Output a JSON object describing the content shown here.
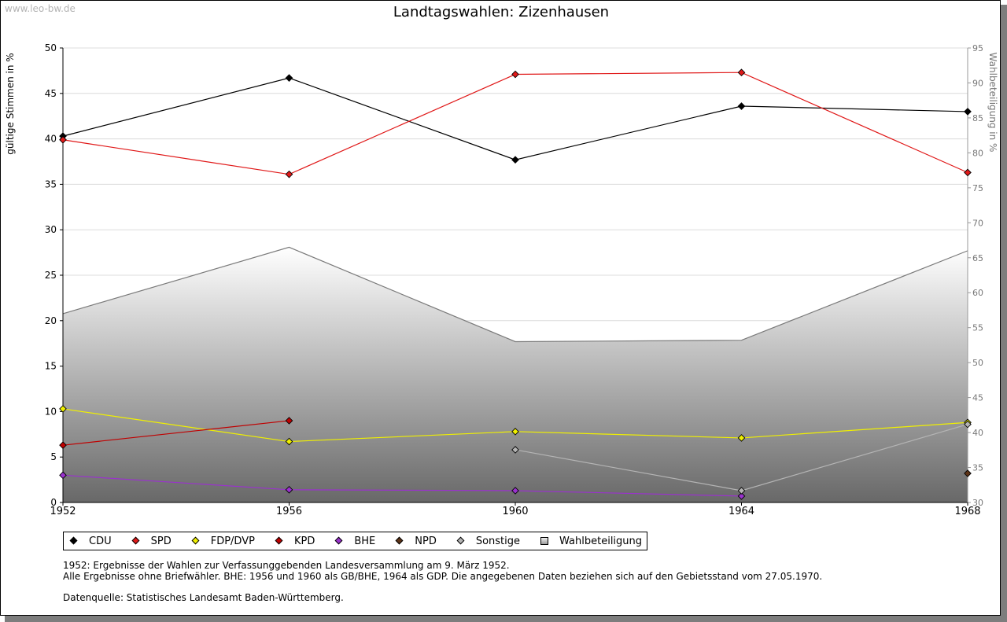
{
  "watermark": "www.leo-bw.de",
  "footnotes": {
    "line1": "1952: Ergebnisse der Wahlen zur Verfassunggebenden Landesversammlung am 9. März 1952.",
    "line2": "Alle Ergebnisse ohne Briefwähler. BHE: 1956 und 1960 als GB/BHE, 1964 als GDP. Die angegebenen Daten beziehen sich auf den Gebietsstand vom 27.05.1970.",
    "source": "Datenquelle: Statistisches Landesamt Baden-Württemberg."
  },
  "chart_data": {
    "type": "line",
    "title": "Landtagswahlen: Zizenhausen",
    "ylabel": "gültige Stimmen in %",
    "y2label": "Wahlbeteiligung in %",
    "x": [
      "1952",
      "1956",
      "1960",
      "1964",
      "1968"
    ],
    "ylim": [
      0,
      50
    ],
    "yticks": [
      0,
      5,
      10,
      15,
      20,
      25,
      30,
      35,
      40,
      45,
      50
    ],
    "y2lim": [
      30,
      95
    ],
    "y2ticks": [
      30,
      35,
      40,
      45,
      50,
      55,
      60,
      65,
      70,
      75,
      80,
      85,
      90,
      95
    ],
    "grid": true,
    "area": {
      "name": "Wahlbeteiligung",
      "axis": "right",
      "values": [
        57.0,
        66.5,
        53.0,
        53.2,
        66.0
      ]
    },
    "series": [
      {
        "name": "CDU",
        "color": "#000000",
        "values": [
          40.3,
          46.7,
          37.7,
          43.6,
          43.0
        ]
      },
      {
        "name": "SPD",
        "color": "#e01818",
        "values": [
          39.9,
          36.1,
          47.1,
          47.3,
          36.3
        ]
      },
      {
        "name": "FDP/DVP",
        "color": "#f0f000",
        "values": [
          10.3,
          6.7,
          7.8,
          7.1,
          8.8
        ]
      },
      {
        "name": "KPD",
        "color": "#c00000",
        "values": [
          6.3,
          9.0,
          null,
          null,
          null
        ]
      },
      {
        "name": "BHE",
        "color": "#9a32cd",
        "values": [
          3.0,
          1.4,
          1.3,
          0.7,
          null
        ]
      },
      {
        "name": "NPD",
        "color": "#5c3317",
        "values": [
          null,
          null,
          null,
          null,
          3.2
        ]
      },
      {
        "name": "Sonstige",
        "color": "#b4b4b4",
        "values": [
          null,
          null,
          5.8,
          1.3,
          8.6
        ]
      }
    ],
    "legend": [
      {
        "name": "CDU",
        "color": "#000000",
        "marker": "diamond"
      },
      {
        "name": "SPD",
        "color": "#e01818",
        "marker": "diamond"
      },
      {
        "name": "FDP/DVP",
        "color": "#f0f000",
        "marker": "diamond"
      },
      {
        "name": "KPD",
        "color": "#c00000",
        "marker": "diamond"
      },
      {
        "name": "BHE",
        "color": "#9a32cd",
        "marker": "diamond"
      },
      {
        "name": "NPD",
        "color": "#5c3317",
        "marker": "diamond"
      },
      {
        "name": "Sonstige",
        "color": "#b4b4b4",
        "marker": "diamond"
      },
      {
        "name": "Wahlbeteiligung",
        "color": "#cccccc",
        "marker": "square"
      }
    ]
  }
}
